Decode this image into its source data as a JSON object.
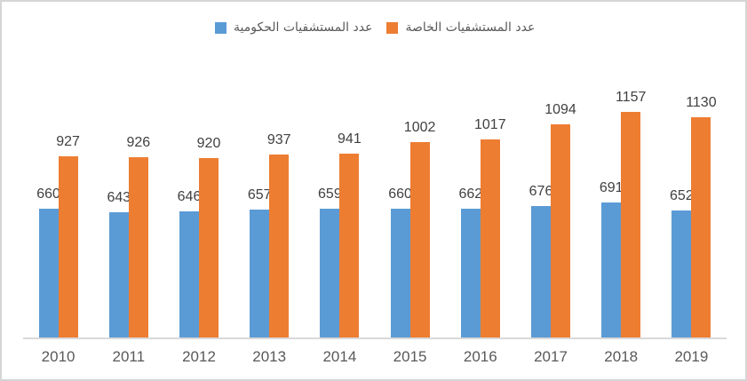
{
  "chart_data": {
    "type": "bar",
    "title": "",
    "categories": [
      "2010",
      "2011",
      "2012",
      "2013",
      "2014",
      "2015",
      "2016",
      "2017",
      "2018",
      "2019"
    ],
    "series": [
      {
        "name": "عدد المستشفيات الحكومية",
        "color": "#5B9BD5",
        "values": [
          660,
          643,
          646,
          657,
          659,
          660,
          662,
          676,
          691,
          652
        ]
      },
      {
        "name": "عدد المستشفيات الخاصة",
        "color": "#ED7D31",
        "values": [
          927,
          926,
          920,
          937,
          941,
          1002,
          1017,
          1094,
          1157,
          1130
        ]
      }
    ],
    "xlabel": "",
    "ylabel": "",
    "ylim": [
      0,
      1200
    ],
    "grid": false,
    "y_axis_visible": false,
    "data_labels": true,
    "legend_position": "top"
  },
  "colors": {
    "axis_line": "#D9D9D9",
    "value_label": "#404040",
    "tick_label": "#595959",
    "canvas_border": "#D5D5D5",
    "background": "#FFFFFF"
  }
}
